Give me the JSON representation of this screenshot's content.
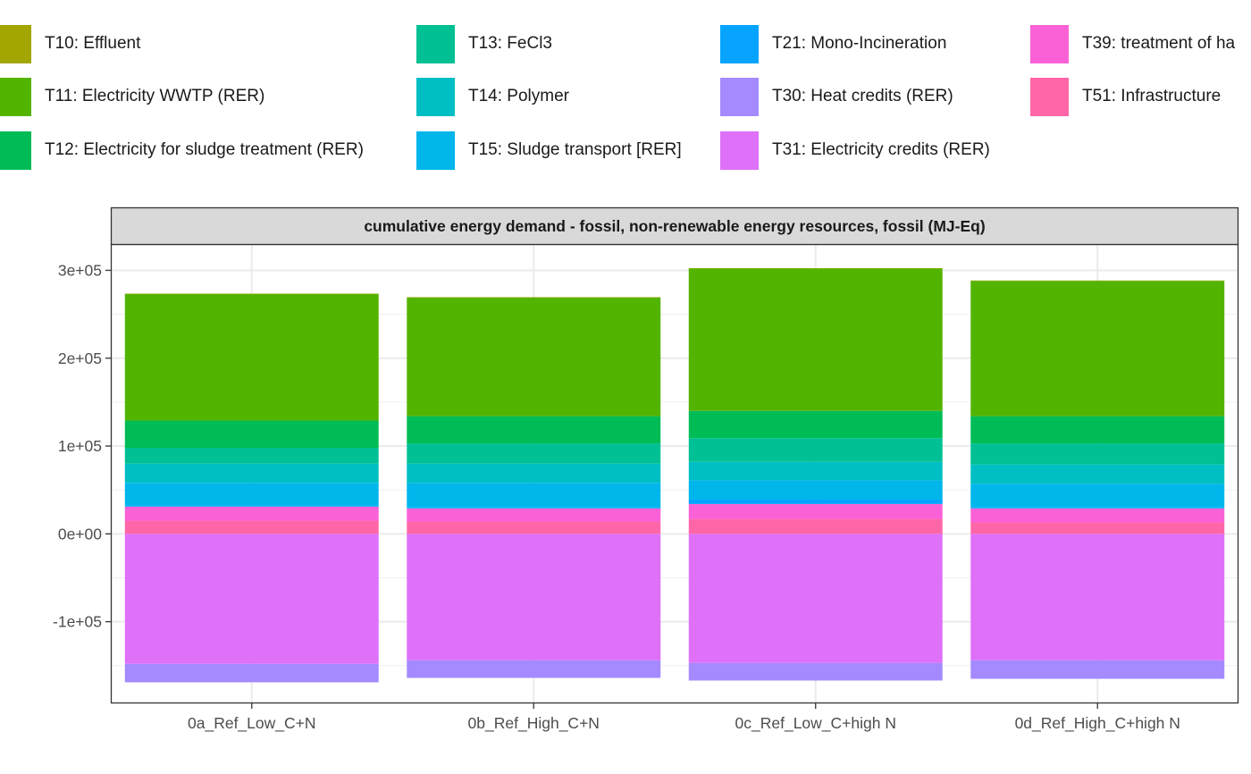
{
  "legend": {
    "items": [
      {
        "code": "T10",
        "label": "T10: Effluent",
        "color": "#A3A500"
      },
      {
        "code": "T11",
        "label": "T11: Electricity WWTP (RER)",
        "color": "#53B400"
      },
      {
        "code": "T12",
        "label": "T12: Electricity for sludge treatment (RER)",
        "color": "#00BC56"
      },
      {
        "code": "T13",
        "label": "T13: FeCl3",
        "color": "#00C094"
      },
      {
        "code": "T14",
        "label": "T14: Polymer",
        "color": "#00BFC4"
      },
      {
        "code": "T15",
        "label": "T15: Sludge transport [RER]",
        "color": "#00B6EB"
      },
      {
        "code": "T21",
        "label": "T21: Mono-Incineration",
        "color": "#06A4FF"
      },
      {
        "code": "T30",
        "label": "T30: Heat credits (RER)",
        "color": "#A58AFF"
      },
      {
        "code": "T31",
        "label": "T31: Electricity credits (RER)",
        "color": "#DF70F8"
      },
      {
        "code": "T39",
        "label": "T39: treatment of ha",
        "color": "#FB61D7"
      },
      {
        "code": "T51",
        "label": "T51: Infrastructure",
        "color": "#FF66A8"
      }
    ]
  },
  "chart_data": {
    "type": "bar",
    "stacked": true,
    "title": "cumulative energy demand - fossil, non-renewable energy resources, fossil (MJ-Eq)",
    "xlabel": "",
    "ylabel": "",
    "categories": [
      "0a_Ref_Low_C+N",
      "0b_Ref_High_C+N",
      "0c_Ref_Low_C+high N",
      "0d_Ref_High_C+high N"
    ],
    "ylim": [
      -193000,
      330000
    ],
    "yticks": [
      -100000,
      0,
      100000,
      200000,
      300000
    ],
    "ytick_labels": [
      "-1e+05",
      "0e+00",
      "1e+05",
      "2e+05",
      "3e+05"
    ],
    "grid": true,
    "legend_position": "top",
    "series": [
      {
        "code": "T51",
        "values": [
          15000,
          14000,
          17000,
          13000
        ]
      },
      {
        "code": "T39",
        "values": [
          16000,
          15000,
          17000,
          16000
        ]
      },
      {
        "code": "T21",
        "values": [
          1000,
          1000,
          5000,
          1000
        ]
      },
      {
        "code": "T15",
        "values": [
          26000,
          28000,
          22000,
          27000
        ]
      },
      {
        "code": "T14",
        "values": [
          22000,
          22000,
          21000,
          22000
        ]
      },
      {
        "code": "T13",
        "values": [
          18000,
          23000,
          27000,
          24000
        ]
      },
      {
        "code": "T12",
        "values": [
          31000,
          31000,
          31000,
          31000
        ]
      },
      {
        "code": "T11",
        "values": [
          144000,
          135000,
          162000,
          154000
        ]
      },
      {
        "code": "T10",
        "values": [
          500,
          500,
          500,
          500
        ]
      },
      {
        "code": "T31",
        "values": [
          -148000,
          -144000,
          -147000,
          -144000
        ]
      },
      {
        "code": "T30",
        "values": [
          -21000,
          -20000,
          -20000,
          -21000
        ]
      }
    ]
  }
}
